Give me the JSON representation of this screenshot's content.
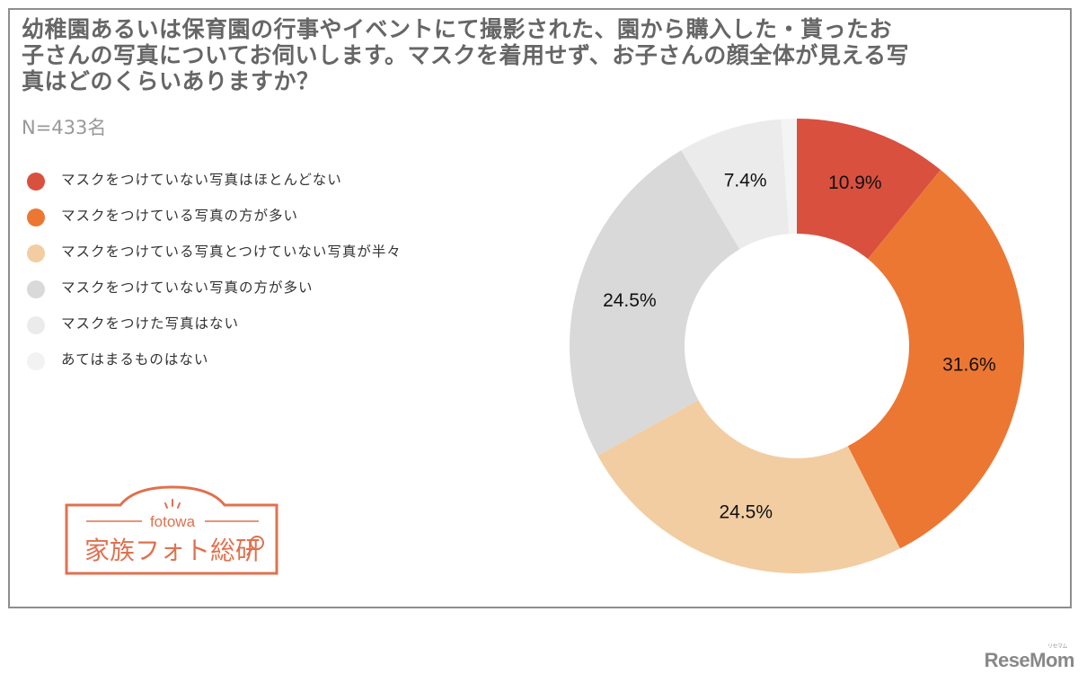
{
  "title": "幼稚園あるいは保育園の行事やイベントにて撮影された、園から購入した・貰ったお子さんの写真についてお伺いします。マスクを着用せず、お子さんの顔全体が見える写真はどのくらいありますか？",
  "title_lines": [
    "幼稚園あるいは保育園の行事やイベントにて撮影された、園から購入した・貰ったお",
    "子さんの写真についてお伺いします。マスクを着用せず、お子さんの顔全体が見える写",
    "真はどのくらいありますか？"
  ],
  "sample_size": "N=433名",
  "legend": [
    {
      "label": "マスクをつけていない写真はほとんどない",
      "color": "#d9503f"
    },
    {
      "label": "マスクをつけている写真の方が多い",
      "color": "#ec7733"
    },
    {
      "label": "マスクをつけている写真とつけていない写真が半々",
      "color": "#f2cda2"
    },
    {
      "label": "マスクをつけていない写真の方が多い",
      "color": "#d9d9d9"
    },
    {
      "label": "マスクをつけた写真はない",
      "color": "#ebebeb"
    },
    {
      "label": "あてはまるものはない",
      "color": "#f2f2f2"
    }
  ],
  "logo": {
    "brand": "fotowa",
    "name": "家族フォト総研",
    "color": "#e0714f"
  },
  "watermark": {
    "text": "ReseMom",
    "sub": "リセマム"
  },
  "chart_data": {
    "type": "pie",
    "donut": true,
    "title": "幼稚園あるいは保育園の行事やイベントにて撮影された、園から購入した・貰ったお子さんの写真についてお伺いします。マスクを着用せず、お子さんの顔全体が見える写真はどのくらいありますか？",
    "subtitle": "N=433名",
    "categories": [
      "マスクをつけていない写真はほとんどない",
      "マスクをつけている写真の方が多い",
      "マスクをつけている写真とつけていない写真が半々",
      "マスクをつけていない写真の方が多い",
      "マスクをつけた写真はない",
      "あてはまるものはない"
    ],
    "values": [
      10.9,
      31.6,
      24.5,
      24.5,
      7.4,
      1.1
    ],
    "labels": [
      "10.9%",
      "31.6%",
      "24.5%",
      "24.5%",
      "7.4%",
      ""
    ],
    "colors": [
      "#d9503f",
      "#ec7733",
      "#f2cda2",
      "#d9d9d9",
      "#ebebeb",
      "#f4f4f4"
    ],
    "start_angle": "12 o'clock, clockwise",
    "legend_position": "left",
    "unit": "%"
  }
}
